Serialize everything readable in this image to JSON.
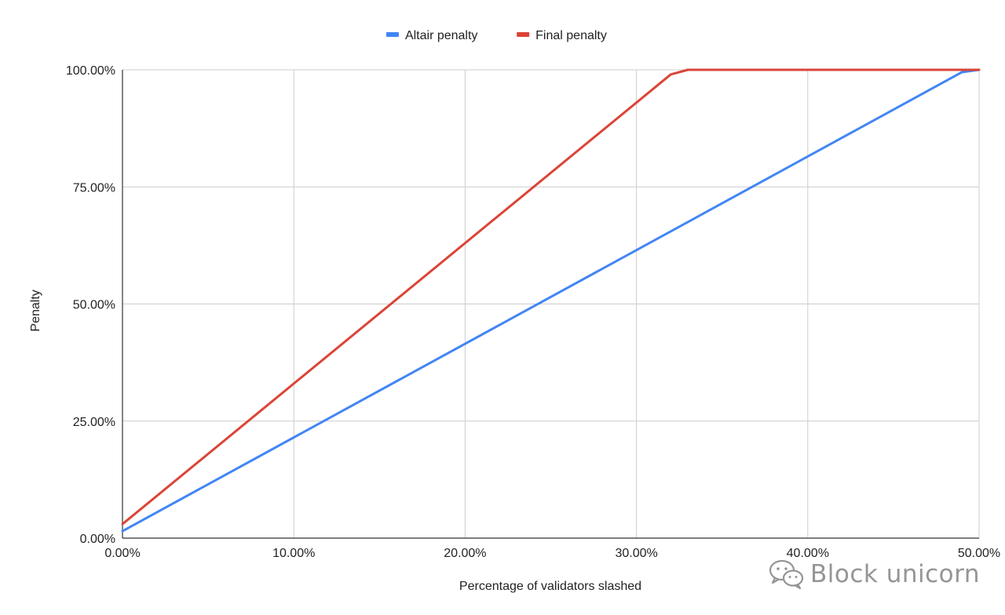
{
  "chart_data": {
    "type": "line",
    "xlabel": "Percentage of validators slashed",
    "ylabel": "Penalty",
    "xlim": [
      0,
      50
    ],
    "ylim": [
      0,
      100
    ],
    "x_ticks": [
      "0.00%",
      "10.00%",
      "20.00%",
      "30.00%",
      "40.00%",
      "50.00%"
    ],
    "y_ticks": [
      "0.00%",
      "25.00%",
      "50.00%",
      "75.00%",
      "100.00%"
    ],
    "x_tick_values": [
      0,
      10,
      20,
      30,
      40,
      50
    ],
    "y_tick_values": [
      0,
      25,
      50,
      75,
      100
    ],
    "grid": true,
    "legend_position": "top-center",
    "series": [
      {
        "name": "Altair penalty",
        "color": "#4285f4",
        "x": [
          0,
          49,
          50
        ],
        "y": [
          1.5,
          99.5,
          100
        ]
      },
      {
        "name": "Final penalty",
        "color": "#db4437",
        "x": [
          0,
          32,
          33,
          50
        ],
        "y": [
          3,
          99,
          100,
          100
        ]
      }
    ]
  },
  "watermark": {
    "text": "Block unicorn",
    "icon": "wechat-icon"
  }
}
